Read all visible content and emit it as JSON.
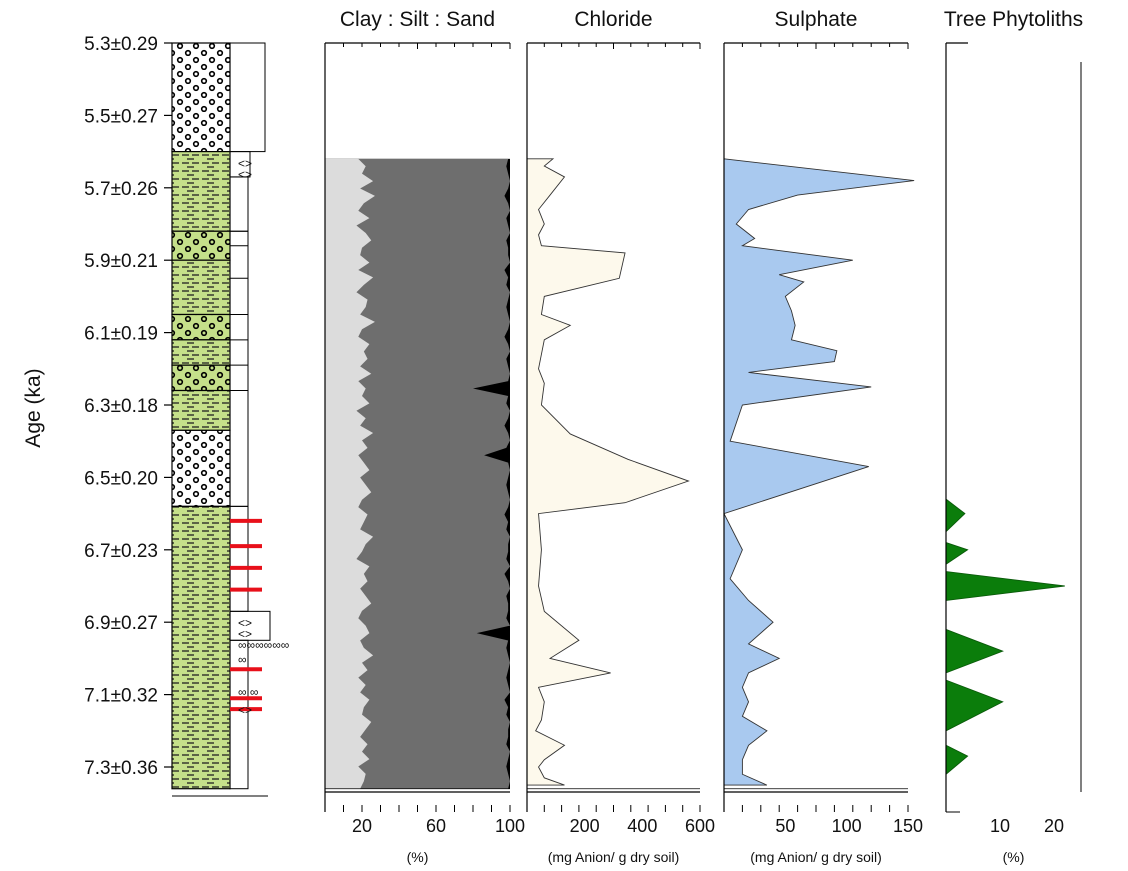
{
  "figure": {
    "y_axis_label": "Age (ka)",
    "age_ticks": [
      "5.3±0.29",
      "5.5±0.27",
      "5.7±0.26",
      "5.9±0.21",
      "6.1±0.19",
      "6.3±0.18",
      "6.5±0.20",
      "6.7±0.23",
      "6.9±0.27",
      "7.1±0.32",
      "7.3±0.36"
    ]
  },
  "colors": {
    "clay": "#dcdcdc",
    "silt": "#6e6e6e",
    "sand": "#000000",
    "chloride": "#fdf9ec",
    "sulphate": "#a9c9ef",
    "phytolith": "#0b7d0b",
    "lithology_green": "#c5e08a",
    "marker_red": "#e8101a"
  },
  "lithology": {
    "description": "stratigraphic column",
    "units": [
      {
        "top": 5.3,
        "bottom": 5.6,
        "pattern": "gravel"
      },
      {
        "top": 5.6,
        "bottom": 5.82,
        "pattern": "silt-green"
      },
      {
        "top": 5.82,
        "bottom": 5.9,
        "pattern": "gravel-green"
      },
      {
        "top": 5.9,
        "bottom": 6.05,
        "pattern": "silt-green"
      },
      {
        "top": 6.05,
        "bottom": 6.12,
        "pattern": "gravel-green"
      },
      {
        "top": 6.12,
        "bottom": 6.19,
        "pattern": "silt-green"
      },
      {
        "top": 6.19,
        "bottom": 6.26,
        "pattern": "gravel-green"
      },
      {
        "top": 6.26,
        "bottom": 6.37,
        "pattern": "silt-green"
      },
      {
        "top": 6.37,
        "bottom": 6.58,
        "pattern": "gravel"
      },
      {
        "top": 6.58,
        "bottom": 7.36,
        "pattern": "silt-green"
      }
    ],
    "red_markers_age": [
      6.62,
      6.69,
      6.75,
      6.81,
      7.03,
      7.11,
      7.14
    ],
    "symbols": [
      {
        "age": 5.63,
        "text": "<>"
      },
      {
        "age": 5.66,
        "text": "<>"
      },
      {
        "age": 6.9,
        "text": "<>"
      },
      {
        "age": 6.93,
        "text": "<>"
      },
      {
        "age": 6.96,
        "text": "∞∞∞∞∞∞"
      },
      {
        "age": 7.0,
        "text": "∞"
      },
      {
        "age": 7.09,
        "text": "∞ ∞"
      },
      {
        "age": 7.14,
        "text": "<>"
      }
    ]
  },
  "chart_data": [
    {
      "type": "area",
      "title": "Clay : Silt : Sand",
      "xlabel": "(%)",
      "xlim": [
        0,
        100
      ],
      "xticks": [
        "20",
        "60",
        "100"
      ],
      "ylim": [
        5.3,
        7.37
      ],
      "series": [
        {
          "name": "Clay",
          "x_boundary": [
            18,
            22,
            20,
            26,
            19,
            27,
            21,
            18,
            24,
            17,
            22,
            25,
            20,
            19,
            24,
            18,
            26,
            21,
            17,
            23,
            22,
            19,
            27,
            20,
            18,
            24,
            21,
            23,
            19,
            25,
            18,
            22,
            20,
            24,
            17,
            22,
            19,
            26,
            20,
            23,
            18,
            21,
            24,
            19,
            22,
            25,
            20,
            18,
            23,
            21,
            19,
            26,
            22,
            20,
            17,
            24,
            21,
            23,
            19,
            22,
            25,
            20,
            18,
            22,
            24,
            19,
            21,
            26,
            20,
            23,
            18,
            22,
            19,
            24,
            21,
            20,
            25,
            22,
            19,
            23,
            20,
            24,
            18,
            22,
            21,
            19
          ]
        },
        {
          "name": "Silt",
          "x_boundary": [
            99,
            98,
            99,
            100,
            99,
            97,
            99,
            100,
            98,
            99,
            100,
            98,
            99,
            99,
            100,
            97,
            99,
            98,
            100,
            99,
            98,
            99,
            100,
            99,
            97,
            99,
            100,
            98,
            99,
            100,
            99,
            80,
            99,
            98,
            100,
            99,
            97,
            99,
            100,
            98,
            86,
            99,
            100,
            99,
            98,
            99,
            100,
            99,
            97,
            99,
            98,
            100,
            99,
            99,
            98,
            100,
            97,
            99,
            100,
            98,
            99,
            99,
            98,
            100,
            82,
            99,
            98,
            99,
            100,
            99,
            98,
            99,
            100,
            97,
            99,
            98,
            100,
            99,
            99,
            98,
            100,
            99,
            98,
            99,
            100,
            99
          ]
        }
      ]
    },
    {
      "type": "area",
      "title": "Chloride",
      "xlabel": "(mg Anion/ g dry soil)",
      "xlim": [
        0,
        600
      ],
      "xticks": [
        "200",
        "400",
        "600"
      ],
      "ylim": [
        5.3,
        7.37
      ],
      "y": [
        5.62,
        5.64,
        5.67,
        5.72,
        5.76,
        5.8,
        5.83,
        5.86,
        5.88,
        5.95,
        6.0,
        6.05,
        6.08,
        6.12,
        6.16,
        6.2,
        6.24,
        6.3,
        6.38,
        6.45,
        6.51,
        6.57,
        6.6,
        6.7,
        6.8,
        6.87,
        6.95,
        7.0,
        7.04,
        7.08,
        7.12,
        7.17,
        7.2,
        7.24,
        7.28,
        7.3,
        7.33,
        7.35
      ],
      "values": [
        90,
        60,
        130,
        80,
        40,
        60,
        40,
        50,
        340,
        320,
        60,
        50,
        150,
        60,
        50,
        40,
        60,
        50,
        150,
        350,
        560,
        340,
        40,
        50,
        40,
        60,
        180,
        80,
        290,
        40,
        60,
        50,
        30,
        130,
        60,
        40,
        60,
        130
      ]
    },
    {
      "type": "area",
      "title": "Sulphate",
      "xlabel": "(mg Anion/ g dry soil)",
      "xlim": [
        0,
        150
      ],
      "xticks": [
        "50",
        "100",
        "150"
      ],
      "ylim": [
        5.3,
        7.37
      ],
      "y": [
        5.62,
        5.68,
        5.72,
        5.76,
        5.8,
        5.84,
        5.86,
        5.9,
        5.94,
        5.96,
        6.0,
        6.04,
        6.08,
        6.12,
        6.15,
        6.18,
        6.21,
        6.25,
        6.3,
        6.4,
        6.47,
        6.6,
        6.7,
        6.78,
        6.84,
        6.9,
        6.96,
        7.0,
        7.04,
        7.08,
        7.12,
        7.16,
        7.2,
        7.24,
        7.28,
        7.32,
        7.35
      ],
      "values": [
        0,
        155,
        60,
        20,
        10,
        25,
        15,
        105,
        45,
        65,
        50,
        55,
        58,
        55,
        92,
        90,
        20,
        120,
        15,
        5,
        118,
        0,
        15,
        5,
        20,
        40,
        20,
        45,
        20,
        15,
        20,
        15,
        35,
        20,
        15,
        15,
        35
      ]
    },
    {
      "type": "area",
      "title": "Tree Phytoliths",
      "xlabel": "(%)",
      "xlim": [
        0,
        25
      ],
      "xticks": [
        "10",
        "20"
      ],
      "ylim": [
        5.3,
        7.37
      ],
      "y": [
        6.56,
        6.6,
        6.65,
        6.68,
        6.7,
        6.74,
        6.76,
        6.8,
        6.84,
        6.87,
        6.92,
        6.98,
        7.04,
        7.06,
        7.12,
        7.2,
        7.24,
        7.27,
        7.32
      ],
      "values": [
        0,
        3.5,
        0,
        0,
        4,
        0,
        0,
        22,
        0,
        0,
        0,
        10.5,
        0,
        0,
        10.5,
        0,
        0,
        4,
        0
      ]
    }
  ]
}
